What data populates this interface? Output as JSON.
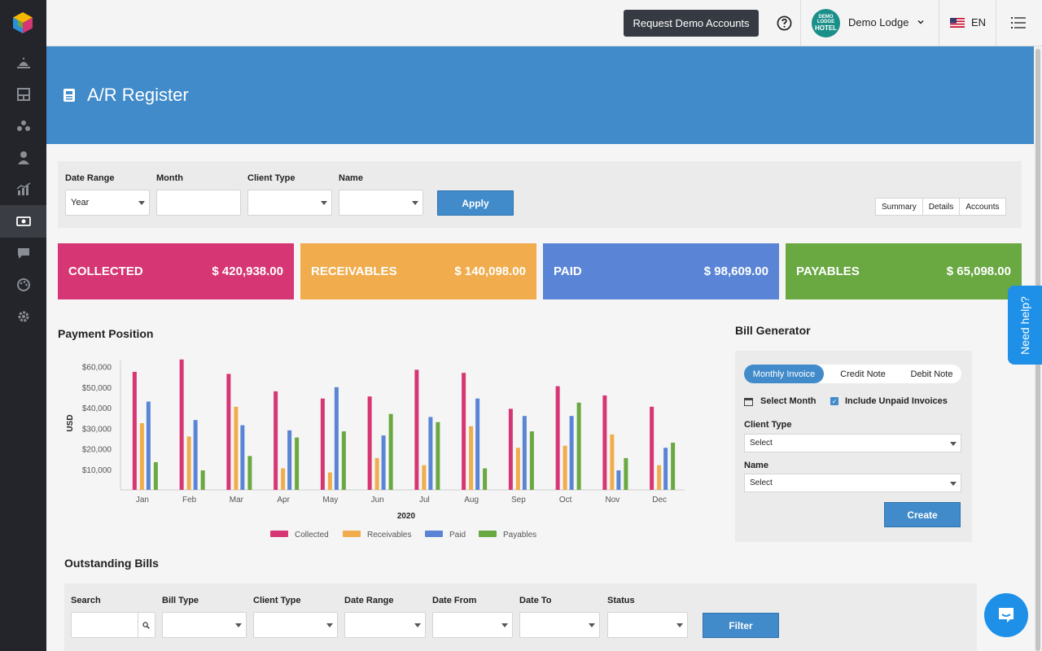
{
  "topbar": {
    "demo_button": "Request Demo Accounts",
    "hotel_name": "Demo Lodge",
    "hotel_logo_small": "DEMO LODGE",
    "hotel_logo_big": "HOTEL",
    "language": "EN"
  },
  "sidebar": {
    "items": [
      {
        "icon": "reception-bell-icon"
      },
      {
        "icon": "rooms-icon"
      },
      {
        "icon": "group-icon"
      },
      {
        "icon": "user-icon"
      },
      {
        "icon": "reports-chart-icon"
      },
      {
        "icon": "money-icon",
        "active": true
      },
      {
        "icon": "chat-icon"
      },
      {
        "icon": "palette-icon"
      },
      {
        "icon": "gear-icon"
      }
    ]
  },
  "page": {
    "title": "A/R Register"
  },
  "filters": {
    "date_range_label": "Date Range",
    "date_range_value": "Year",
    "month_label": "Month",
    "client_type_label": "Client Type",
    "name_label": "Name",
    "apply": "Apply",
    "view_tabs": [
      "Summary",
      "Details",
      "Accounts"
    ]
  },
  "cards": [
    {
      "label": "COLLECTED",
      "value": "$ 420,938.00",
      "color": "#d63673"
    },
    {
      "label": "RECEIVABLES",
      "value": "$ 140,098.00",
      "color": "#f0ac4d"
    },
    {
      "label": "PAID",
      "value": "$ 98,609.00",
      "color": "#5a85d6"
    },
    {
      "label": "PAYABLES",
      "value": "$ 65,098.00",
      "color": "#6aa842"
    }
  ],
  "payment_position": {
    "title": "Payment Position"
  },
  "chart_data": {
    "type": "bar",
    "categories": [
      "Jan",
      "Feb",
      "Mar",
      "Apr",
      "May",
      "Jun",
      "Jul",
      "Aug",
      "Sep",
      "Oct",
      "Nov",
      "Dec"
    ],
    "series": [
      {
        "name": "Collected",
        "color": "#d63673",
        "values": [
          57500,
          63500,
          56500,
          48000,
          44500,
          45500,
          58500,
          57000,
          39500,
          50500,
          46000,
          40500
        ]
      },
      {
        "name": "Receivables",
        "color": "#f0ac4d",
        "values": [
          32500,
          26000,
          40500,
          10500,
          8500,
          15500,
          12000,
          31000,
          20500,
          21500,
          27000,
          12000
        ]
      },
      {
        "name": "Paid",
        "color": "#5a85d6",
        "values": [
          43000,
          34000,
          31500,
          29000,
          50000,
          26500,
          35500,
          44500,
          36000,
          36000,
          9500,
          20500
        ]
      },
      {
        "name": "Payables",
        "color": "#6aa842",
        "values": [
          13500,
          9500,
          16500,
          25500,
          28500,
          37000,
          33000,
          10500,
          28500,
          42500,
          15500,
          23000
        ]
      }
    ],
    "xlabel": "2020",
    "ylabel": "USD",
    "yticks": [
      "$10,000",
      "$20,000",
      "$30,000",
      "$40,000",
      "$50,000",
      "$60,000"
    ],
    "ylim": [
      0,
      65000
    ],
    "legend": "bottom"
  },
  "bill_generator": {
    "title": "Bill Generator",
    "tabs": [
      "Monthly Invoice",
      "Credit Note",
      "Debit Note"
    ],
    "select_month": "Select Month",
    "include_unpaid": "Include Unpaid Invoices",
    "client_type_label": "Client Type",
    "client_type_value": "Select",
    "name_label": "Name",
    "name_value": "Select",
    "create": "Create"
  },
  "outstanding": {
    "title": "Outstanding Bills",
    "search_label": "Search",
    "bill_type_label": "Bill Type",
    "client_type_label": "Client Type",
    "date_range_label": "Date Range",
    "date_from_label": "Date From",
    "date_to_label": "Date To",
    "status_label": "Status",
    "filter": "Filter"
  },
  "help": {
    "need_help": "Need help?"
  }
}
